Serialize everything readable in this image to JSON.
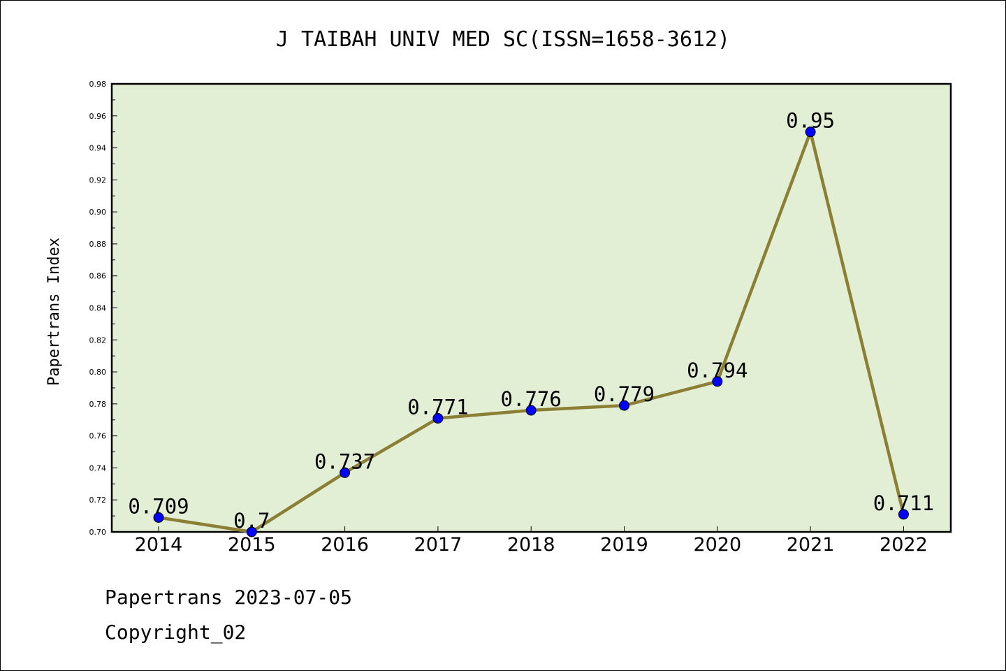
{
  "chart_data": {
    "type": "line",
    "title": "J TAIBAH UNIV MED SC(ISSN=1658-3612)",
    "xlabel": "",
    "ylabel": "Papertrans Index",
    "categories": [
      "2014",
      "2015",
      "2016",
      "2017",
      "2018",
      "2019",
      "2020",
      "2021",
      "2022"
    ],
    "values": [
      0.709,
      0.7,
      0.737,
      0.771,
      0.776,
      0.779,
      0.794,
      0.95,
      0.711
    ],
    "data_labels": [
      "0.709",
      "0.7",
      "0.737",
      "0.771",
      "0.776",
      "0.779",
      "0.794",
      "0.95",
      "0.711"
    ],
    "ylim": [
      0.7,
      0.98
    ],
    "yticks": [
      "0.70",
      "0.72",
      "0.74",
      "0.76",
      "0.78",
      "0.80",
      "0.82",
      "0.84",
      "0.86",
      "0.88",
      "0.90",
      "0.92",
      "0.94",
      "0.96",
      "0.98"
    ],
    "grid": false,
    "legend": "none",
    "colors": {
      "plot_background": "#e2efd4",
      "line": "#8b7e35",
      "marker": "#0000ff",
      "axes": "#000000"
    }
  },
  "footer": {
    "line1": "Papertrans 2023-07-05",
    "line2": "Copyright_02"
  }
}
